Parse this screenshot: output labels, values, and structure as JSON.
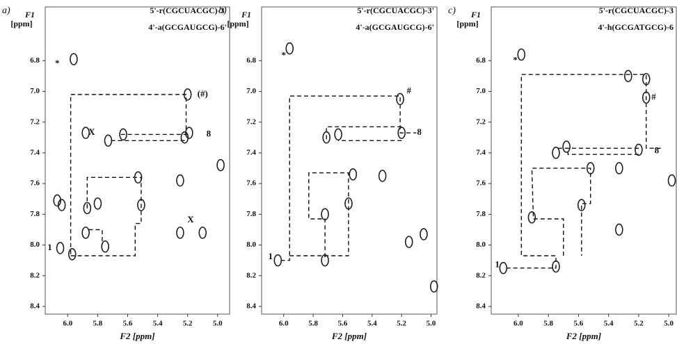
{
  "chart_data": [
    {
      "type": "scatter",
      "panel_label": "a)",
      "title": "5'-r(CGCUACGC)-3'",
      "subtitle": "4'-a(GCGAUGCG)-6'",
      "ylabel": "F1",
      "ylabel_unit": "[ppm]",
      "xlabel": "F2 [ppm]",
      "xlim": [
        6.15,
        4.92
      ],
      "ylim": [
        6.45,
        8.45
      ],
      "xticks": [
        {
          "value": 6,
          "label": "6.0"
        },
        5.8,
        5.6,
        5.4,
        5.2,
        {
          "value": 5,
          "label": "5.0"
        }
      ],
      "yticks": [
        6.8,
        {
          "value": 7,
          "label": "7.0"
        },
        7.2,
        7.4,
        7.6,
        7.8,
        {
          "value": 8,
          "label": "8.0"
        },
        8.2,
        8.4
      ],
      "annotations": [
        "*",
        "(#)",
        "8",
        "1",
        "X",
        "X"
      ],
      "x": [
        5.96,
        5.2,
        5.88,
        5.63,
        5.73,
        5.22,
        5.19,
        4.98,
        5.25,
        5.53,
        5.51,
        5.87,
        5.8,
        5.88,
        5.75,
        6.05,
        5.97,
        5.25,
        5.1,
        6.07,
        6.04
      ],
      "y": [
        6.79,
        7.02,
        7.27,
        7.28,
        7.32,
        7.3,
        7.27,
        7.48,
        7.58,
        7.56,
        7.74,
        7.76,
        7.73,
        7.92,
        8.01,
        8.02,
        8.06,
        7.92,
        7.92,
        7.71,
        7.74
      ],
      "walk": {
        "x": [
          5.98,
          5.98,
          5.21,
          5.21,
          null,
          5.2,
          5.65,
          null,
          5.22,
          5.73,
          null,
          5.98,
          5.55,
          5.55,
          5.51,
          5.51,
          5.87,
          5.87,
          null,
          5.86,
          5.77,
          5.77
        ],
        "y": [
          8.06,
          7.02,
          7.02,
          7.27,
          null,
          7.28,
          7.28,
          null,
          7.32,
          7.32,
          null,
          8.07,
          8.07,
          7.86,
          7.86,
          7.56,
          7.56,
          7.78,
          null,
          7.9,
          7.9,
          8.0
        ]
      }
    },
    {
      "type": "scatter",
      "panel_label": "b)",
      "title": "5'-r(CGCUACGC)-3'",
      "subtitle": "4'-a(GCGAUGCG)-6'",
      "ylabel": "F1",
      "ylabel_unit": "[ppm]",
      "xlabel": "F2 [ppm]",
      "xlim": [
        6.15,
        4.96
      ],
      "ylim": [
        6.45,
        8.45
      ],
      "xticks": [
        {
          "value": 6,
          "label": "6.0"
        },
        5.8,
        5.6,
        5.4,
        5.2,
        {
          "value": 5,
          "label": "5.0"
        }
      ],
      "yticks": [
        6.8,
        {
          "value": 7,
          "label": "7.0"
        },
        7.2,
        7.4,
        7.6,
        7.8,
        {
          "value": 8,
          "label": "8.0"
        },
        8.2,
        8.4
      ],
      "annotations": [
        "*",
        "#",
        "8",
        "1"
      ],
      "x": [
        5.96,
        5.21,
        5.2,
        5.71,
        5.63,
        5.33,
        5.53,
        5.72,
        5.56,
        5.72,
        6.04,
        5.05,
        5.15,
        4.98
      ],
      "y": [
        6.72,
        7.05,
        7.27,
        7.3,
        7.28,
        7.55,
        7.54,
        7.8,
        7.73,
        8.1,
        8.1,
        7.93,
        7.98,
        8.27
      ],
      "walk": {
        "x": [
          6.02,
          5.96,
          5.96,
          5.21,
          5.21,
          5.1,
          null,
          5.2,
          5.71,
          5.71,
          null,
          5.2,
          5.63,
          null,
          5.96,
          5.56,
          5.56,
          5.83,
          5.83,
          5.72,
          5.72
        ],
        "y": [
          8.1,
          8.1,
          7.03,
          7.03,
          7.27,
          7.27,
          null,
          7.23,
          7.23,
          7.32,
          null,
          7.32,
          7.32,
          null,
          8.07,
          8.07,
          7.53,
          7.53,
          7.83,
          7.83,
          8.1
        ]
      }
    },
    {
      "type": "scatter",
      "panel_label": "c)",
      "title": "5'-r(CGCUACGC)-3",
      "subtitle": "4'-h(GCGATGCG)-6",
      "ylabel": "F1",
      "ylabel_unit": "[ppm]",
      "xlabel": "F2 [ppm]",
      "xlim": [
        6.18,
        4.95
      ],
      "ylim": [
        6.45,
        8.45
      ],
      "xticks": [
        {
          "value": 6,
          "label": "6.0"
        },
        5.8,
        5.6,
        5.4,
        5.2,
        {
          "value": 5,
          "label": "5.0"
        }
      ],
      "yticks": [
        6.8,
        {
          "value": 7,
          "label": "7.0"
        },
        7.2,
        7.4,
        7.6,
        7.8,
        {
          "value": 8,
          "label": "8.0"
        },
        8.2,
        8.4
      ],
      "annotations": [
        "*",
        "#",
        "8",
        "1"
      ],
      "x": [
        5.98,
        5.27,
        5.15,
        5.15,
        5.75,
        5.68,
        5.2,
        5.33,
        5.52,
        5.58,
        5.33,
        5.91,
        5.75,
        6.1,
        4.98
      ],
      "y": [
        6.76,
        6.9,
        6.92,
        7.04,
        7.4,
        7.36,
        7.38,
        7.5,
        7.5,
        7.74,
        7.9,
        7.82,
        8.14,
        8.15,
        7.58
      ],
      "walk": {
        "x": [
          6.08,
          5.75,
          5.75,
          5.98,
          5.98,
          5.15,
          5.15,
          5.05,
          null,
          5.2,
          5.75,
          null,
          5.2,
          5.67,
          5.67,
          null,
          5.7,
          5.7,
          5.9,
          5.91,
          5.52,
          5.52,
          5.58,
          5.58
        ],
        "y": [
          8.15,
          8.15,
          8.07,
          8.07,
          6.89,
          6.89,
          7.37,
          7.37,
          null,
          7.37,
          7.37,
          null,
          7.41,
          7.41,
          7.37,
          null,
          8.07,
          7.83,
          7.83,
          7.5,
          7.5,
          7.73,
          7.73,
          8.07
        ]
      }
    }
  ]
}
